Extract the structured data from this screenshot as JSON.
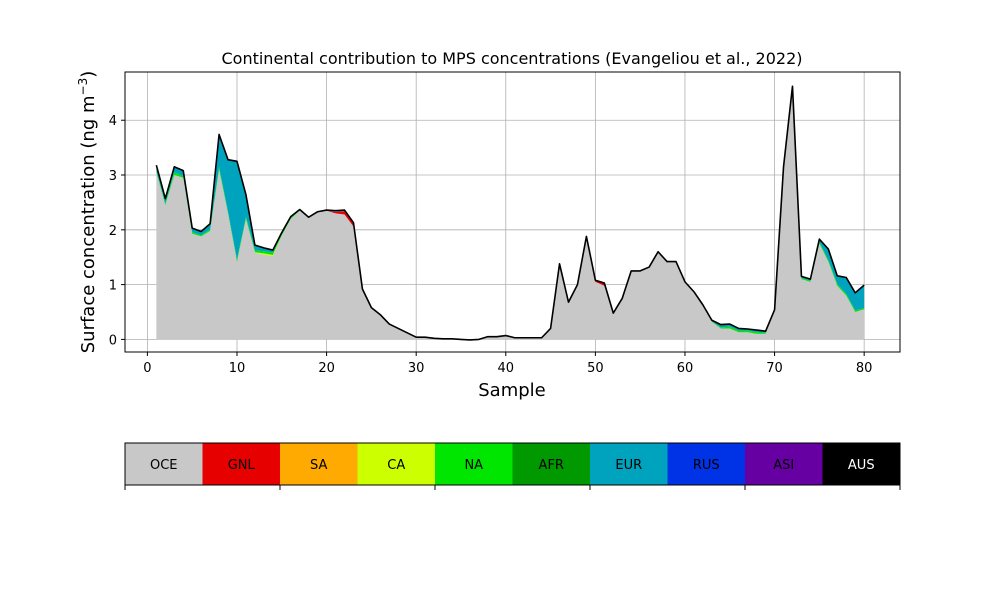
{
  "chart_data": {
    "type": "area",
    "stacked": true,
    "title": "Continental contribution to MPS concentrations (Evangeliou et al., 2022)",
    "xlabel": "Sample",
    "ylabel_main": "Surface concentration (ng m",
    "ylabel_sup": "−3",
    "ylabel_close": ")",
    "xlim": [
      -2.5,
      84
    ],
    "ylim": [
      -0.23,
      4.88
    ],
    "xticks": [
      0,
      10,
      20,
      30,
      40,
      50,
      60,
      70,
      80
    ],
    "yticks": [
      0,
      1,
      2,
      3,
      4
    ],
    "grid": true,
    "x": [
      1,
      2,
      3,
      4,
      5,
      6,
      7,
      8,
      9,
      10,
      11,
      12,
      13,
      14,
      15,
      16,
      17,
      18,
      19,
      20,
      21,
      22,
      23,
      24,
      25,
      26,
      27,
      28,
      29,
      30,
      31,
      32,
      33,
      34,
      35,
      36,
      37,
      38,
      39,
      40,
      41,
      42,
      43,
      44,
      45,
      46,
      47,
      48,
      49,
      50,
      51,
      52,
      53,
      54,
      55,
      56,
      57,
      58,
      59,
      60,
      61,
      62,
      63,
      64,
      65,
      66,
      67,
      68,
      69,
      70,
      71,
      72,
      73,
      74,
      75,
      76,
      77,
      78,
      79,
      80
    ],
    "series": [
      {
        "name": "OCE",
        "color": "#c8c8c8",
        "values": [
          3.05,
          2.45,
          3.0,
          2.95,
          1.93,
          1.88,
          1.98,
          3.1,
          2.3,
          1.42,
          2.2,
          1.58,
          1.55,
          1.52,
          1.9,
          2.2,
          2.35,
          2.22,
          2.32,
          2.35,
          2.3,
          2.28,
          2.06,
          0.92,
          0.58,
          0.45,
          0.28,
          0.2,
          0.12,
          0.04,
          0.04,
          0.02,
          0.01,
          0.01,
          0.0,
          -0.01,
          0.0,
          0.05,
          0.05,
          0.07,
          0.03,
          0.03,
          0.03,
          0.03,
          0.2,
          1.38,
          0.68,
          1.0,
          1.88,
          1.05,
          0.98,
          0.48,
          0.75,
          1.25,
          1.25,
          1.32,
          1.6,
          1.42,
          1.42,
          1.05,
          0.87,
          0.63,
          0.32,
          0.2,
          0.2,
          0.13,
          0.13,
          0.1,
          0.1,
          0.52,
          3.15,
          4.62,
          1.1,
          1.05,
          1.75,
          1.42,
          0.98,
          0.8,
          0.5,
          0.55
        ]
      },
      {
        "name": "GNL",
        "color": "#e60000",
        "values": [
          0,
          0,
          0,
          0,
          0,
          0,
          0,
          0,
          0,
          0,
          0,
          0,
          0,
          0,
          0,
          0,
          0,
          0,
          0,
          0,
          0.03,
          0.06,
          0.05,
          0,
          0,
          0,
          0,
          0,
          0,
          0,
          0,
          0,
          0,
          0,
          0,
          0,
          0,
          0,
          0,
          0,
          0,
          0,
          0,
          0,
          0,
          0,
          0,
          0,
          0,
          0.03,
          0.05,
          0,
          0,
          0,
          0,
          0,
          0,
          0,
          0,
          0,
          0,
          0,
          0,
          0,
          0,
          0,
          0,
          0,
          0,
          0,
          0,
          0,
          0,
          0,
          0,
          0,
          0,
          0,
          0,
          0
        ]
      },
      {
        "name": "SA",
        "color": "#ffaa00",
        "values": [
          0,
          0,
          0,
          0,
          0,
          0,
          0,
          0,
          0,
          0,
          0,
          0,
          0,
          0,
          0,
          0,
          0,
          0,
          0,
          0,
          0,
          0,
          0,
          0,
          0,
          0,
          0,
          0,
          0,
          0,
          0,
          0,
          0,
          0,
          0,
          0,
          0,
          0,
          0,
          0,
          0,
          0,
          0,
          0,
          0,
          0,
          0,
          0,
          0,
          0,
          0,
          0,
          0,
          0,
          0,
          0,
          0,
          0,
          0,
          0,
          0,
          0,
          0,
          0,
          0,
          0,
          0,
          0,
          0,
          0,
          0,
          0,
          0,
          0,
          0,
          0,
          0,
          0,
          0,
          0
        ]
      },
      {
        "name": "CA",
        "color": "#ccff00",
        "values": [
          0,
          0,
          0,
          0,
          0,
          0,
          0,
          0,
          0,
          0,
          0,
          0.01,
          0.02,
          0.02,
          0,
          0,
          0,
          0,
          0,
          0,
          0,
          0,
          0,
          0,
          0,
          0,
          0,
          0,
          0,
          0,
          0,
          0,
          0,
          0,
          0,
          0,
          0,
          0,
          0,
          0,
          0,
          0,
          0,
          0,
          0,
          0,
          0,
          0,
          0,
          0,
          0,
          0,
          0,
          0,
          0,
          0,
          0,
          0,
          0,
          0,
          0,
          0,
          0,
          0,
          0,
          0,
          0,
          0,
          0,
          0,
          0,
          0,
          0,
          0,
          0,
          0,
          0,
          0,
          0,
          0
        ]
      },
      {
        "name": "NA",
        "color": "#00e600",
        "values": [
          0.03,
          0.03,
          0.05,
          0.03,
          0.03,
          0.02,
          0.03,
          0.05,
          0.03,
          0.04,
          0.04,
          0.03,
          0.04,
          0.04,
          0.03,
          0.02,
          0.01,
          0,
          0,
          0,
          0,
          0,
          0,
          0,
          0,
          0,
          0,
          0,
          0,
          0,
          0,
          0,
          0,
          0,
          0,
          0,
          0,
          0,
          0,
          0,
          0,
          0,
          0,
          0,
          0,
          0,
          0,
          0,
          0,
          0,
          0,
          0,
          0,
          0,
          0,
          0,
          0,
          0,
          0,
          0,
          0,
          0,
          0.01,
          0.02,
          0.03,
          0.03,
          0.03,
          0.03,
          0.02,
          0,
          0,
          0,
          0.02,
          0.02,
          0.03,
          0.03,
          0.03,
          0.03,
          0.03,
          0.02
        ]
      },
      {
        "name": "AFR",
        "color": "#009900",
        "values": [
          0,
          0,
          0,
          0,
          0,
          0,
          0,
          0,
          0,
          0,
          0,
          0,
          0,
          0,
          0,
          0,
          0,
          0,
          0,
          0,
          0,
          0,
          0,
          0,
          0,
          0,
          0,
          0,
          0,
          0,
          0,
          0,
          0,
          0,
          0,
          0,
          0,
          0,
          0,
          0,
          0,
          0,
          0,
          0,
          0,
          0,
          0,
          0,
          0,
          0,
          0,
          0,
          0,
          0,
          0,
          0,
          0,
          0,
          0,
          0,
          0,
          0,
          0,
          0,
          0,
          0,
          0,
          0,
          0,
          0,
          0,
          0,
          0,
          0,
          0,
          0,
          0,
          0,
          0,
          0
        ]
      },
      {
        "name": "EUR",
        "color": "#00a3bd",
        "values": [
          0.1,
          0.09,
          0.1,
          0.1,
          0.07,
          0.07,
          0.1,
          0.59,
          0.95,
          1.79,
          0.4,
          0.1,
          0.06,
          0.05,
          0.02,
          0.02,
          0.01,
          0.01,
          0.01,
          0.01,
          0.02,
          0.02,
          0.02,
          0,
          0,
          0,
          0,
          0,
          0,
          0,
          0,
          0,
          0,
          0,
          0,
          0,
          0,
          0,
          0,
          0,
          0,
          0,
          0,
          0,
          0,
          0,
          0,
          0,
          0,
          0,
          0,
          0,
          0,
          0,
          0,
          0,
          0,
          0,
          0,
          0,
          0,
          0,
          0.02,
          0.05,
          0.05,
          0.04,
          0.03,
          0.04,
          0.03,
          0.02,
          0,
          0,
          0.03,
          0.03,
          0.05,
          0.2,
          0.15,
          0.3,
          0.32,
          0.42
        ]
      },
      {
        "name": "RUS",
        "color": "#0033e6",
        "values": [
          0,
          0,
          0,
          0,
          0,
          0,
          0,
          0,
          0,
          0,
          0,
          0,
          0,
          0,
          0,
          0,
          0,
          0,
          0,
          0,
          0,
          0,
          0,
          0,
          0,
          0,
          0,
          0,
          0,
          0,
          0,
          0,
          0,
          0,
          0,
          0,
          0,
          0,
          0,
          0,
          0,
          0,
          0,
          0,
          0,
          0,
          0,
          0,
          0,
          0,
          0,
          0,
          0,
          0,
          0,
          0,
          0,
          0,
          0,
          0,
          0,
          0,
          0,
          0,
          0,
          0,
          0,
          0,
          0,
          0,
          0,
          0,
          0,
          0,
          0,
          0,
          0,
          0,
          0,
          0
        ]
      },
      {
        "name": "ASI",
        "color": "#6600a3",
        "values": [
          0,
          0,
          0,
          0,
          0,
          0,
          0,
          0,
          0,
          0,
          0,
          0,
          0,
          0,
          0,
          0,
          0,
          0,
          0,
          0,
          0,
          0,
          0,
          0,
          0,
          0,
          0,
          0,
          0,
          0,
          0,
          0,
          0,
          0,
          0,
          0,
          0,
          0,
          0,
          0,
          0,
          0,
          0,
          0,
          0,
          0,
          0,
          0,
          0,
          0,
          0,
          0,
          0,
          0,
          0,
          0,
          0,
          0,
          0,
          0,
          0,
          0,
          0,
          0,
          0,
          0,
          0,
          0,
          0,
          0,
          0,
          0,
          0,
          0,
          0,
          0,
          0,
          0,
          0,
          0
        ]
      },
      {
        "name": "AUS",
        "color": "#000000",
        "values": [
          0,
          0,
          0,
          0,
          0,
          0,
          0,
          0,
          0,
          0,
          0,
          0,
          0,
          0,
          0,
          0,
          0,
          0,
          0,
          0,
          0,
          0,
          0,
          0,
          0,
          0,
          0,
          0,
          0,
          0,
          0,
          0,
          0,
          0,
          0,
          0,
          0,
          0,
          0,
          0,
          0,
          0,
          0,
          0,
          0,
          0,
          0,
          0,
          0,
          0,
          0,
          0,
          0,
          0,
          0,
          0,
          0,
          0,
          0,
          0,
          0,
          0,
          0,
          0,
          0,
          0,
          0,
          0,
          0,
          0,
          0,
          0,
          0,
          0,
          0,
          0,
          0,
          0,
          0,
          0
        ]
      }
    ],
    "legend": {
      "placement": "bottom",
      "text_colors": [
        "#000000",
        "#000000",
        "#000000",
        "#000000",
        "#000000",
        "#000000",
        "#000000",
        "#000000",
        "#000000",
        "#ffffff"
      ]
    }
  }
}
